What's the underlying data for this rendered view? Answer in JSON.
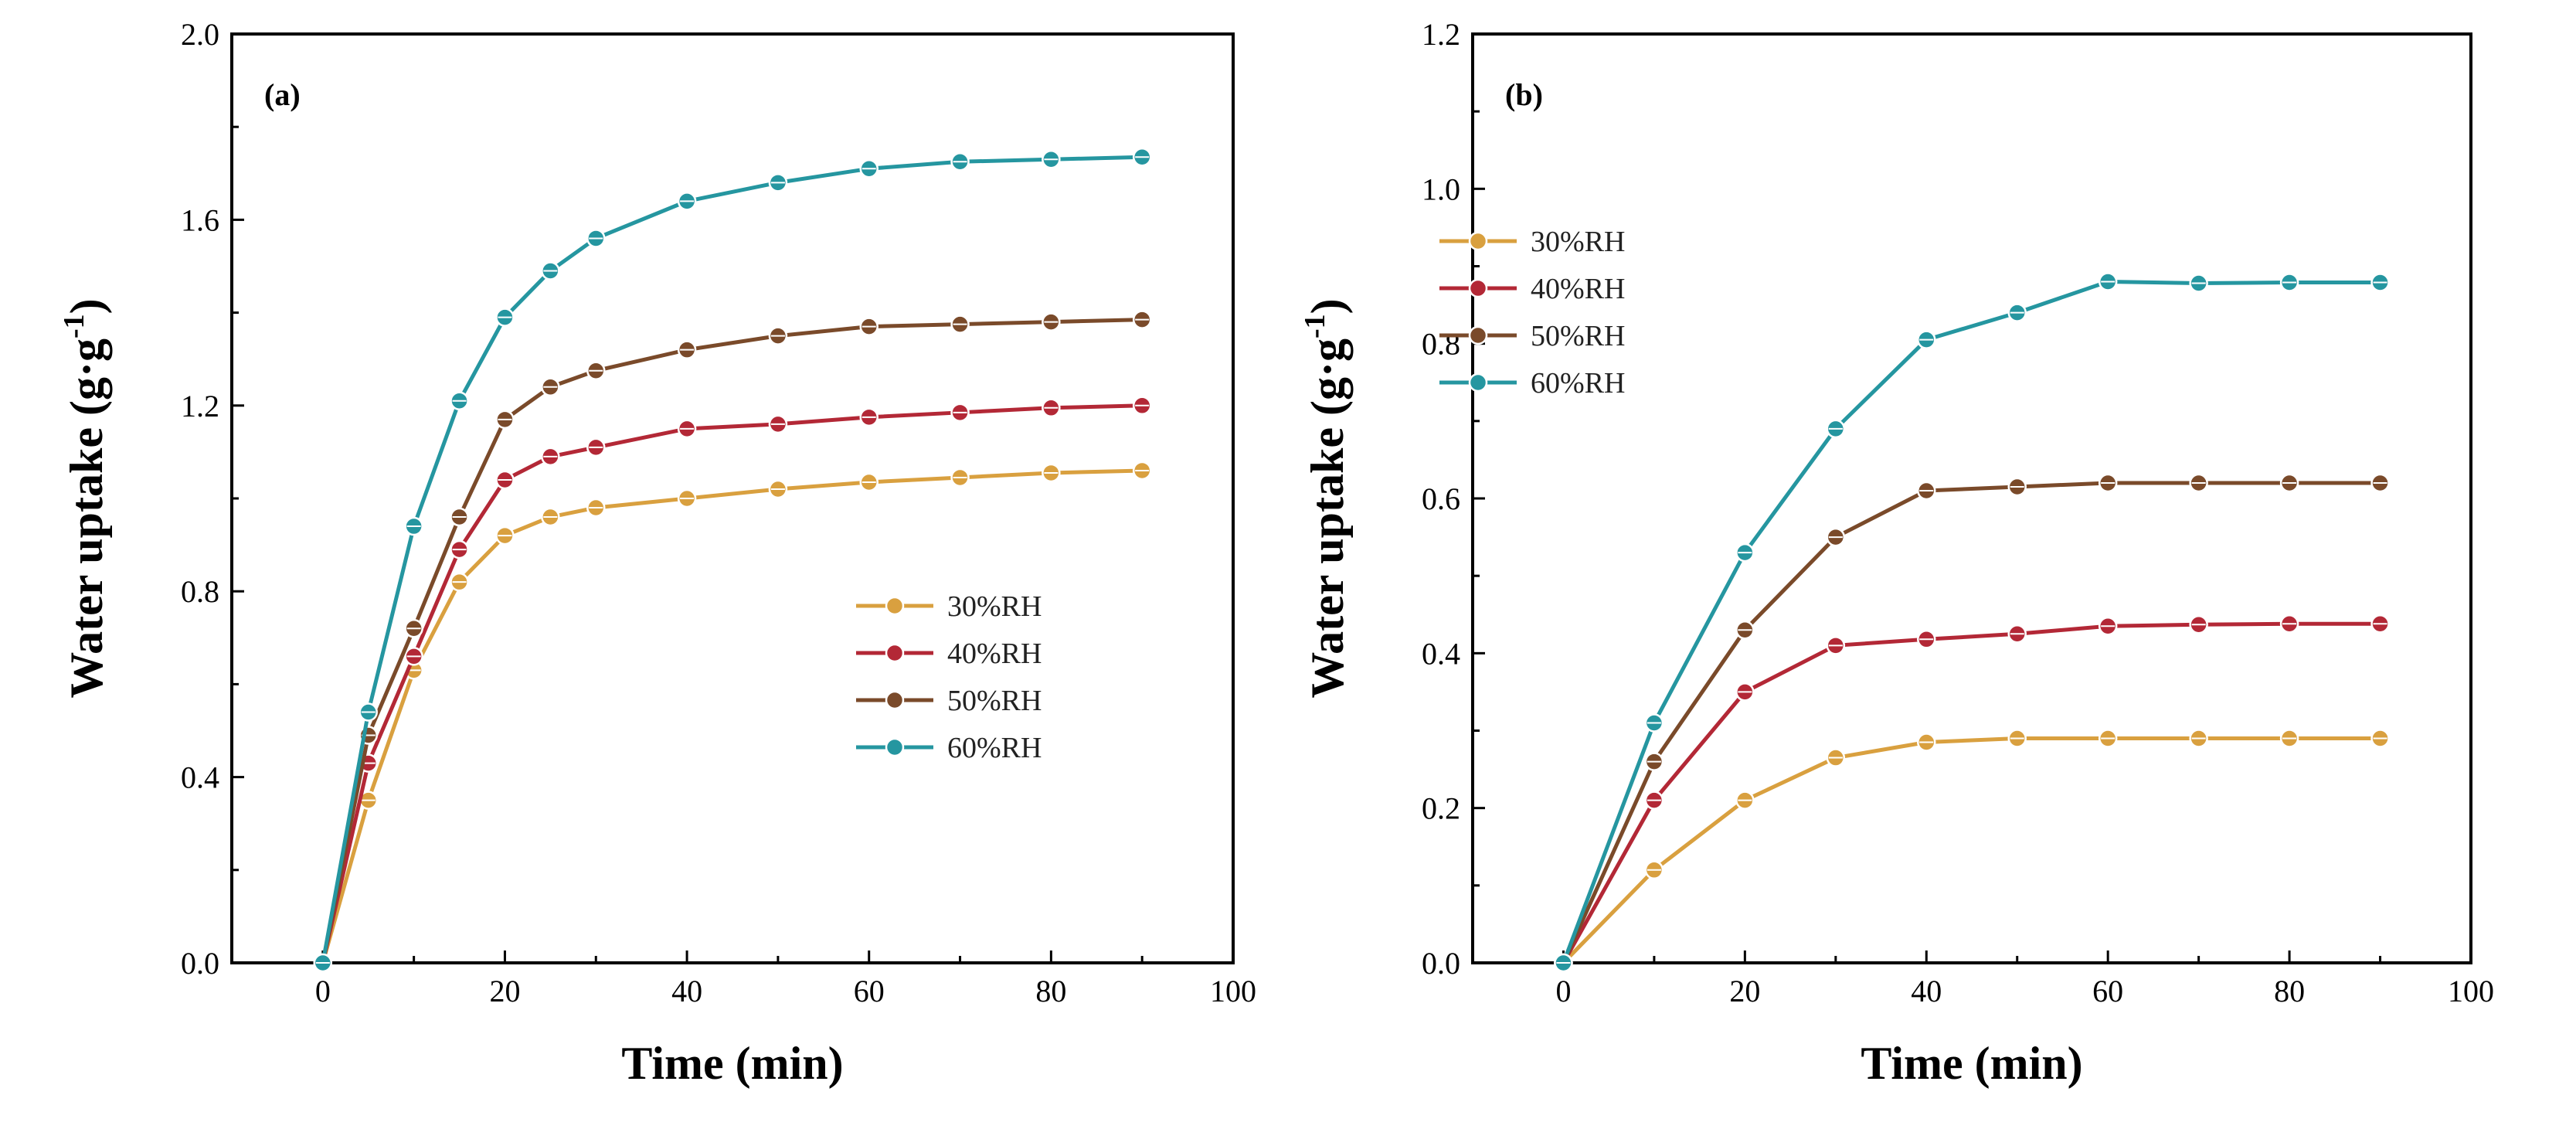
{
  "colors": {
    "30%RH": "#d9a03f",
    "40%RH": "#b32836",
    "50%RH": "#7a4a2a",
    "60%RH": "#2596a0"
  },
  "chart_data": [
    {
      "type": "line",
      "panel_label": "(a)",
      "xlabel": "Time (min)",
      "ylabel": "Water uptake (g·g",
      "ylabel_sup": "-1",
      "ylabel_close": ")",
      "xlim": [
        -10,
        100
      ],
      "ylim": [
        0.0,
        2.0
      ],
      "xticks": [
        0,
        20,
        40,
        60,
        80,
        100
      ],
      "xtick_labels": [
        "0",
        "20",
        "40",
        "60",
        "80",
        "100"
      ],
      "yticks": [
        0.0,
        0.4,
        0.8,
        1.2,
        1.6,
        2.0
      ],
      "ytick_labels": [
        "0.0",
        "0.4",
        "0.8",
        "1.2",
        "1.6",
        "2.0"
      ],
      "legend_position": "lower-right",
      "x": [
        0,
        5,
        10,
        15,
        20,
        25,
        30,
        40,
        50,
        60,
        70,
        80,
        90
      ],
      "series": [
        {
          "name": "30%RH",
          "color": "#d9a03f",
          "values": [
            0.0,
            0.35,
            0.63,
            0.82,
            0.92,
            0.96,
            0.98,
            1.0,
            1.02,
            1.035,
            1.045,
            1.055,
            1.06
          ]
        },
        {
          "name": "40%RH",
          "color": "#b32836",
          "values": [
            0.0,
            0.43,
            0.66,
            0.89,
            1.04,
            1.09,
            1.11,
            1.15,
            1.16,
            1.175,
            1.185,
            1.195,
            1.2
          ]
        },
        {
          "name": "50%RH",
          "color": "#7a4a2a",
          "values": [
            0.0,
            0.49,
            0.72,
            0.96,
            1.17,
            1.24,
            1.275,
            1.32,
            1.35,
            1.37,
            1.375,
            1.38,
            1.385
          ]
        },
        {
          "name": "60%RH",
          "color": "#2596a0",
          "values": [
            0.0,
            0.54,
            0.94,
            1.21,
            1.39,
            1.49,
            1.56,
            1.64,
            1.68,
            1.71,
            1.725,
            1.73,
            1.735
          ]
        }
      ]
    },
    {
      "type": "line",
      "panel_label": "(b)",
      "xlabel": "Time (min)",
      "ylabel": "Water uptake (g·g",
      "ylabel_sup": "-1",
      "ylabel_close": ")",
      "xlim": [
        -10,
        100
      ],
      "ylim": [
        0.0,
        1.2
      ],
      "xticks": [
        0,
        20,
        40,
        60,
        80,
        100
      ],
      "xtick_labels": [
        "0",
        "20",
        "40",
        "60",
        "80",
        "100"
      ],
      "yticks": [
        0.0,
        0.2,
        0.4,
        0.6,
        0.8,
        1.0,
        1.2
      ],
      "ytick_labels": [
        "0.0",
        "0.2",
        "0.4",
        "0.6",
        "0.8",
        "1.0",
        "1.2"
      ],
      "legend_position": "upper-left",
      "x": [
        0,
        10,
        20,
        30,
        40,
        50,
        60,
        70,
        80,
        90
      ],
      "series": [
        {
          "name": "30%RH",
          "color": "#d9a03f",
          "values": [
            0.0,
            0.12,
            0.21,
            0.265,
            0.285,
            0.29,
            0.29,
            0.29,
            0.29,
            0.29
          ]
        },
        {
          "name": "40%RH",
          "color": "#b32836",
          "values": [
            0.0,
            0.21,
            0.35,
            0.41,
            0.418,
            0.425,
            0.435,
            0.437,
            0.438,
            0.438
          ]
        },
        {
          "name": "50%RH",
          "color": "#7a4a2a",
          "values": [
            0.0,
            0.26,
            0.43,
            0.55,
            0.61,
            0.615,
            0.62,
            0.62,
            0.62,
            0.62
          ]
        },
        {
          "name": "60%RH",
          "color": "#2596a0",
          "values": [
            0.0,
            0.31,
            0.53,
            0.69,
            0.805,
            0.84,
            0.88,
            0.878,
            0.879,
            0.879
          ]
        }
      ]
    }
  ]
}
